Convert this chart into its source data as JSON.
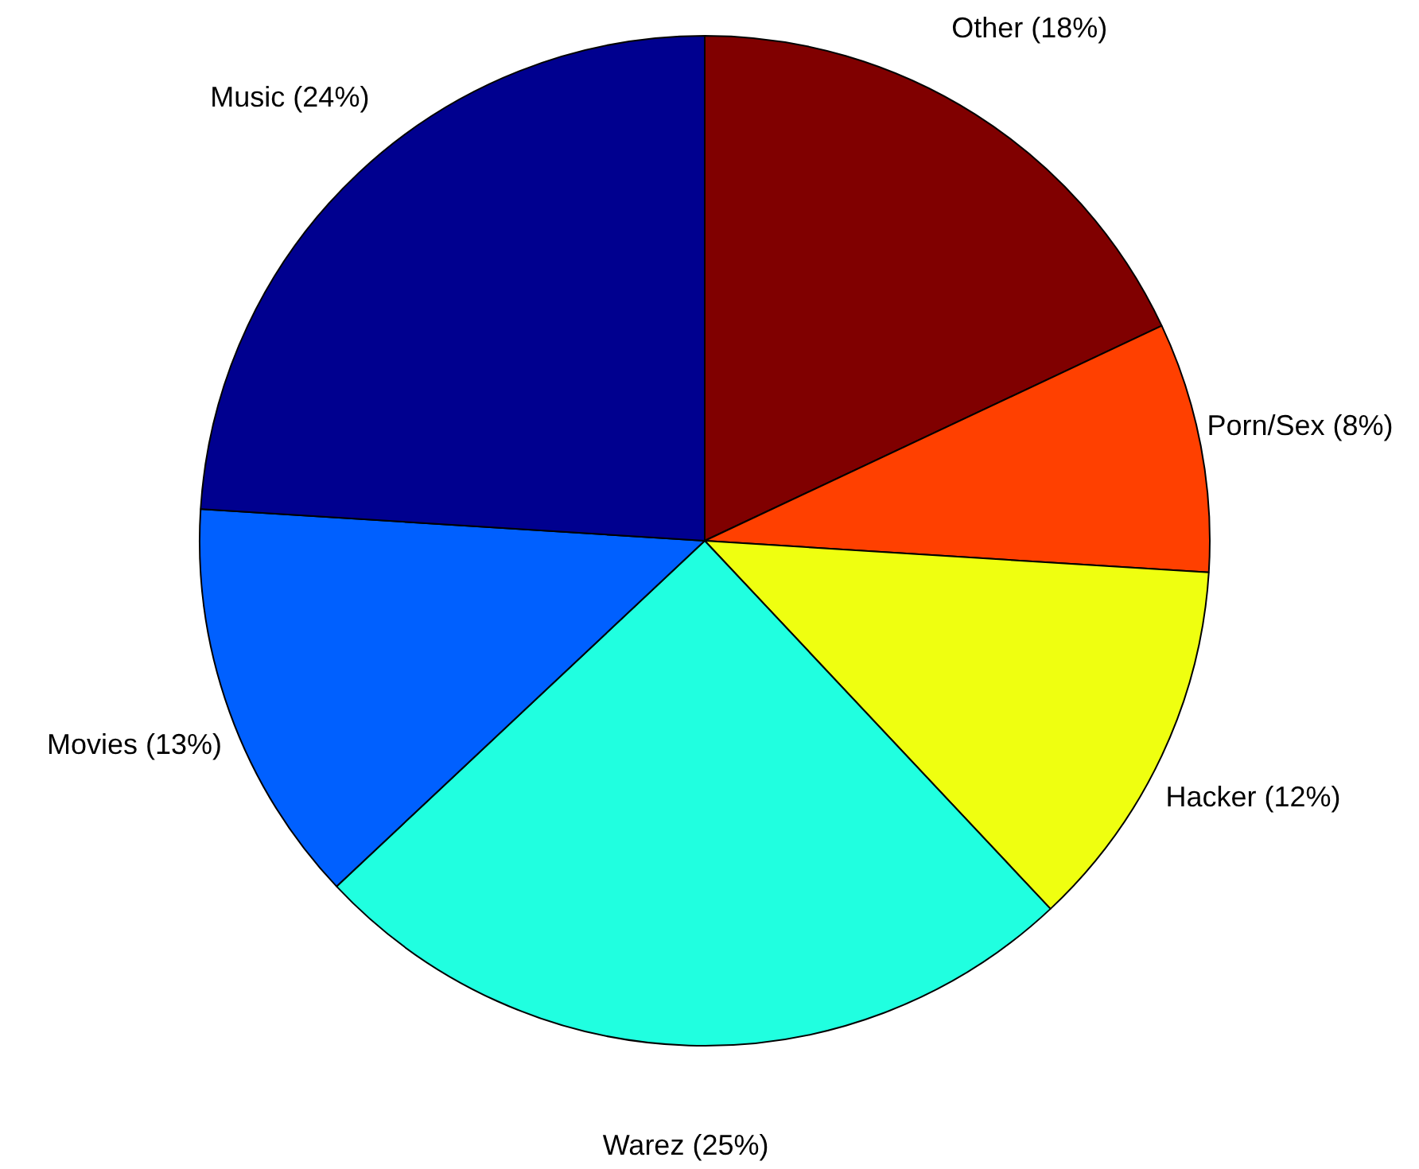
{
  "chart_data": {
    "type": "pie",
    "categories": [
      "Other (18%)",
      "Porn/Sex (8%)",
      "Hacker (12%)",
      "Warez (25%)",
      "Movies (13%)",
      "Music (24%)"
    ],
    "values": [
      18,
      8,
      12,
      25,
      13,
      24
    ],
    "colors": [
      "#800000",
      "#ff4000",
      "#efff10",
      "#20ffe0",
      "#0060ff",
      "#00008f"
    ],
    "legend": false
  }
}
